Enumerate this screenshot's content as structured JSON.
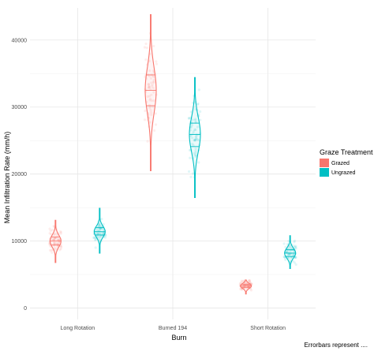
{
  "chart_data": {
    "type": "violin",
    "title": "",
    "xlabel": "Burn",
    "ylabel": "Mean Infiltration Rate (mm/h)",
    "caption": "Errorbars represent ....",
    "categories": [
      "Long Rotation",
      "Burned 194",
      "Short Rotation"
    ],
    "ylim": [
      -1700,
      44800
    ],
    "yticks": [
      0,
      10000,
      20000,
      30000,
      40000
    ],
    "ytick_labels": [
      "0",
      "10000",
      "20000",
      "30000",
      "40000"
    ],
    "grid": true,
    "legend": {
      "title": "Graze Treatment",
      "position": "right"
    },
    "series": [
      {
        "name": "Grazed",
        "color": "#F8766D",
        "violins": [
          {
            "category": "Long Rotation",
            "min": 6800,
            "max": 13100,
            "q1": 9400,
            "median": 10000,
            "q3": 10600
          },
          {
            "category": "Burned 194",
            "min": 20500,
            "max": 43800,
            "q1": 30200,
            "median": 32500,
            "q3": 34800
          },
          {
            "category": "Short Rotation",
            "min": 2100,
            "max": 4200,
            "q1": 3050,
            "median": 3300,
            "q3": 3550
          }
        ]
      },
      {
        "name": "Ungrazed",
        "color": "#00BFC4",
        "violins": [
          {
            "category": "Long Rotation",
            "min": 8200,
            "max": 14900,
            "q1": 10900,
            "median": 11400,
            "q3": 12000
          },
          {
            "category": "Burned 194",
            "min": 16500,
            "max": 34400,
            "q1": 24100,
            "median": 25900,
            "q3": 27600
          },
          {
            "category": "Short Rotation",
            "min": 5900,
            "max": 10800,
            "q1": 7700,
            "median": 8200,
            "q3": 8700
          }
        ]
      }
    ]
  }
}
